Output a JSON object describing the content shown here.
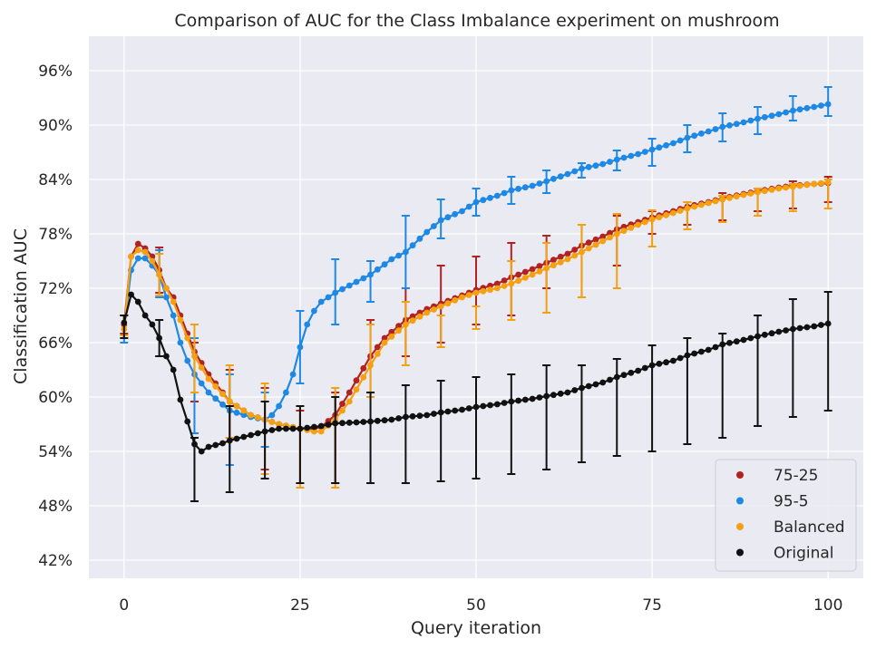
{
  "chart_data": {
    "type": "line",
    "title": "Comparison of AUC for the Class Imbalance experiment on mushroom",
    "xlabel": "Query iteration",
    "ylabel": "Classification AUC",
    "xlim": [
      -5,
      105
    ],
    "ylim": [
      0.4,
      0.998
    ],
    "xticks": [
      0,
      25,
      50,
      75,
      100
    ],
    "xtick_labels": [
      "0",
      "25",
      "50",
      "75",
      "100"
    ],
    "yticks": [
      0.42,
      0.48,
      0.54,
      0.6,
      0.66,
      0.72,
      0.78,
      0.84,
      0.9,
      0.96
    ],
    "ytick_labels": [
      "42%",
      "48%",
      "54%",
      "60%",
      "66%",
      "72%",
      "78%",
      "84%",
      "90%",
      "96%"
    ],
    "grid": true,
    "background": "#eaeaf2",
    "legend_position": "bottom-right",
    "errorbar_every": 5,
    "series": [
      {
        "name": "75-25",
        "color": "#b22222",
        "anchors": [
          [
            0,
            0.68
          ],
          [
            1,
            0.755
          ],
          [
            2,
            0.769
          ],
          [
            3,
            0.764
          ],
          [
            4,
            0.755
          ],
          [
            5,
            0.74
          ],
          [
            6,
            0.72
          ],
          [
            7,
            0.71
          ],
          [
            8,
            0.69
          ],
          [
            9,
            0.67
          ],
          [
            10,
            0.65
          ],
          [
            12,
            0.625
          ],
          [
            15,
            0.595
          ],
          [
            18,
            0.58
          ],
          [
            20,
            0.575
          ],
          [
            22,
            0.57
          ],
          [
            25,
            0.565
          ],
          [
            27,
            0.565
          ],
          [
            28,
            0.567
          ],
          [
            30,
            0.58
          ],
          [
            32,
            0.605
          ],
          [
            35,
            0.645
          ],
          [
            37,
            0.665
          ],
          [
            40,
            0.685
          ],
          [
            43,
            0.697
          ],
          [
            45,
            0.703
          ],
          [
            48,
            0.712
          ],
          [
            50,
            0.718
          ],
          [
            53,
            0.725
          ],
          [
            55,
            0.732
          ],
          [
            58,
            0.741
          ],
          [
            60,
            0.748
          ],
          [
            63,
            0.758
          ],
          [
            65,
            0.767
          ],
          [
            68,
            0.777
          ],
          [
            70,
            0.785
          ],
          [
            73,
            0.793
          ],
          [
            75,
            0.798
          ],
          [
            78,
            0.805
          ],
          [
            80,
            0.81
          ],
          [
            83,
            0.815
          ],
          [
            85,
            0.819
          ],
          [
            88,
            0.824
          ],
          [
            90,
            0.827
          ],
          [
            93,
            0.831
          ],
          [
            95,
            0.833
          ],
          [
            98,
            0.835
          ],
          [
            100,
            0.836
          ]
        ],
        "errorbars": [
          [
            0,
            0.67,
            0.69
          ],
          [
            5,
            0.715,
            0.765
          ],
          [
            10,
            0.595,
            0.66
          ],
          [
            15,
            0.555,
            0.63
          ],
          [
            20,
            0.52,
            0.61
          ],
          [
            25,
            0.505,
            0.585
          ],
          [
            30,
            0.505,
            0.605
          ],
          [
            35,
            0.605,
            0.685
          ],
          [
            40,
            0.645,
            0.72
          ],
          [
            45,
            0.66,
            0.745
          ],
          [
            50,
            0.68,
            0.755
          ],
          [
            55,
            0.69,
            0.77
          ],
          [
            60,
            0.72,
            0.778
          ],
          [
            65,
            0.71,
            0.79
          ],
          [
            70,
            0.745,
            0.8
          ],
          [
            75,
            0.78,
            0.805
          ],
          [
            80,
            0.79,
            0.815
          ],
          [
            85,
            0.795,
            0.825
          ],
          [
            90,
            0.805,
            0.83
          ],
          [
            95,
            0.808,
            0.838
          ],
          [
            100,
            0.815,
            0.843
          ]
        ]
      },
      {
        "name": "95-5",
        "color": "#1e88e5",
        "anchors": [
          [
            0,
            0.675
          ],
          [
            1,
            0.74
          ],
          [
            2,
            0.753
          ],
          [
            3,
            0.753
          ],
          [
            4,
            0.745
          ],
          [
            5,
            0.735
          ],
          [
            6,
            0.71
          ],
          [
            7,
            0.69
          ],
          [
            8,
            0.66
          ],
          [
            9,
            0.64
          ],
          [
            10,
            0.625
          ],
          [
            12,
            0.605
          ],
          [
            15,
            0.585
          ],
          [
            18,
            0.578
          ],
          [
            20,
            0.575
          ],
          [
            21,
            0.58
          ],
          [
            22,
            0.59
          ],
          [
            23,
            0.605
          ],
          [
            24,
            0.625
          ],
          [
            25,
            0.655
          ],
          [
            26,
            0.68
          ],
          [
            27,
            0.695
          ],
          [
            28,
            0.705
          ],
          [
            30,
            0.715
          ],
          [
            32,
            0.723
          ],
          [
            35,
            0.735
          ],
          [
            38,
            0.752
          ],
          [
            40,
            0.76
          ],
          [
            43,
            0.782
          ],
          [
            45,
            0.795
          ],
          [
            48,
            0.805
          ],
          [
            50,
            0.815
          ],
          [
            53,
            0.822
          ],
          [
            55,
            0.828
          ],
          [
            58,
            0.833
          ],
          [
            60,
            0.838
          ],
          [
            63,
            0.846
          ],
          [
            65,
            0.852
          ],
          [
            68,
            0.857
          ],
          [
            70,
            0.862
          ],
          [
            73,
            0.868
          ],
          [
            75,
            0.873
          ],
          [
            78,
            0.88
          ],
          [
            80,
            0.886
          ],
          [
            83,
            0.893
          ],
          [
            85,
            0.898
          ],
          [
            88,
            0.903
          ],
          [
            90,
            0.907
          ],
          [
            93,
            0.912
          ],
          [
            95,
            0.916
          ],
          [
            98,
            0.92
          ],
          [
            100,
            0.923
          ]
        ],
        "errorbars": [
          [
            0,
            0.66,
            0.69
          ],
          [
            5,
            0.71,
            0.762
          ],
          [
            10,
            0.56,
            0.665
          ],
          [
            15,
            0.525,
            0.625
          ],
          [
            20,
            0.545,
            0.605
          ],
          [
            25,
            0.615,
            0.695
          ],
          [
            30,
            0.68,
            0.752
          ],
          [
            35,
            0.705,
            0.75
          ],
          [
            40,
            0.72,
            0.8
          ],
          [
            45,
            0.775,
            0.818
          ],
          [
            50,
            0.8,
            0.83
          ],
          [
            55,
            0.813,
            0.843
          ],
          [
            60,
            0.825,
            0.85
          ],
          [
            65,
            0.842,
            0.858
          ],
          [
            70,
            0.85,
            0.872
          ],
          [
            75,
            0.855,
            0.885
          ],
          [
            80,
            0.87,
            0.9
          ],
          [
            85,
            0.882,
            0.913
          ],
          [
            90,
            0.89,
            0.92
          ],
          [
            95,
            0.905,
            0.932
          ],
          [
            100,
            0.91,
            0.942
          ]
        ]
      },
      {
        "name": "Balanced",
        "color": "#f5a010",
        "anchors": [
          [
            0,
            0.675
          ],
          [
            1,
            0.755
          ],
          [
            2,
            0.762
          ],
          [
            3,
            0.76
          ],
          [
            4,
            0.75
          ],
          [
            5,
            0.735
          ],
          [
            6,
            0.72
          ],
          [
            7,
            0.705
          ],
          [
            8,
            0.685
          ],
          [
            9,
            0.665
          ],
          [
            10,
            0.645
          ],
          [
            12,
            0.62
          ],
          [
            15,
            0.595
          ],
          [
            18,
            0.58
          ],
          [
            20,
            0.575
          ],
          [
            22,
            0.57
          ],
          [
            25,
            0.565
          ],
          [
            27,
            0.562
          ],
          [
            28,
            0.562
          ],
          [
            30,
            0.575
          ],
          [
            32,
            0.595
          ],
          [
            35,
            0.635
          ],
          [
            37,
            0.66
          ],
          [
            40,
            0.68
          ],
          [
            43,
            0.693
          ],
          [
            45,
            0.7
          ],
          [
            48,
            0.71
          ],
          [
            50,
            0.715
          ],
          [
            53,
            0.72
          ],
          [
            55,
            0.725
          ],
          [
            58,
            0.735
          ],
          [
            60,
            0.742
          ],
          [
            63,
            0.752
          ],
          [
            65,
            0.76
          ],
          [
            68,
            0.772
          ],
          [
            70,
            0.78
          ],
          [
            73,
            0.79
          ],
          [
            75,
            0.796
          ],
          [
            78,
            0.803
          ],
          [
            80,
            0.808
          ],
          [
            83,
            0.814
          ],
          [
            85,
            0.818
          ],
          [
            88,
            0.823
          ],
          [
            90,
            0.826
          ],
          [
            93,
            0.83
          ],
          [
            95,
            0.832
          ],
          [
            98,
            0.835
          ],
          [
            100,
            0.837
          ]
        ],
        "errorbars": [
          [
            0,
            0.668,
            0.69
          ],
          [
            5,
            0.712,
            0.758
          ],
          [
            10,
            0.605,
            0.68
          ],
          [
            15,
            0.555,
            0.635
          ],
          [
            20,
            0.515,
            0.615
          ],
          [
            25,
            0.5,
            0.59
          ],
          [
            30,
            0.5,
            0.61
          ],
          [
            35,
            0.6,
            0.68
          ],
          [
            40,
            0.635,
            0.705
          ],
          [
            45,
            0.655,
            0.69
          ],
          [
            50,
            0.675,
            0.7
          ],
          [
            55,
            0.685,
            0.75
          ],
          [
            60,
            0.693,
            0.77
          ],
          [
            65,
            0.71,
            0.79
          ],
          [
            70,
            0.72,
            0.802
          ],
          [
            75,
            0.766,
            0.806
          ],
          [
            80,
            0.785,
            0.815
          ],
          [
            85,
            0.793,
            0.822
          ],
          [
            90,
            0.8,
            0.83
          ],
          [
            95,
            0.805,
            0.835
          ],
          [
            100,
            0.808,
            0.84
          ]
        ]
      },
      {
        "name": "Original",
        "color": "#111111",
        "anchors": [
          [
            0,
            0.682
          ],
          [
            1,
            0.713
          ],
          [
            2,
            0.705
          ],
          [
            3,
            0.69
          ],
          [
            4,
            0.68
          ],
          [
            5,
            0.665
          ],
          [
            6,
            0.645
          ],
          [
            7,
            0.63
          ],
          [
            8,
            0.597
          ],
          [
            9,
            0.573
          ],
          [
            10,
            0.548
          ],
          [
            11,
            0.54
          ],
          [
            12,
            0.545
          ],
          [
            14,
            0.549
          ],
          [
            15,
            0.552
          ],
          [
            18,
            0.558
          ],
          [
            20,
            0.562
          ],
          [
            22,
            0.565
          ],
          [
            25,
            0.565
          ],
          [
            28,
            0.568
          ],
          [
            30,
            0.571
          ],
          [
            33,
            0.572
          ],
          [
            35,
            0.573
          ],
          [
            38,
            0.575
          ],
          [
            40,
            0.578
          ],
          [
            43,
            0.58
          ],
          [
            45,
            0.583
          ],
          [
            48,
            0.586
          ],
          [
            50,
            0.589
          ],
          [
            53,
            0.592
          ],
          [
            55,
            0.595
          ],
          [
            58,
            0.598
          ],
          [
            60,
            0.601
          ],
          [
            63,
            0.605
          ],
          [
            65,
            0.61
          ],
          [
            68,
            0.616
          ],
          [
            70,
            0.622
          ],
          [
            73,
            0.629
          ],
          [
            75,
            0.635
          ],
          [
            78,
            0.64
          ],
          [
            80,
            0.646
          ],
          [
            83,
            0.652
          ],
          [
            85,
            0.658
          ],
          [
            88,
            0.663
          ],
          [
            90,
            0.667
          ],
          [
            93,
            0.672
          ],
          [
            95,
            0.675
          ],
          [
            98,
            0.678
          ],
          [
            100,
            0.681
          ]
        ],
        "errorbars": [
          [
            0,
            0.665,
            0.69
          ],
          [
            5,
            0.645,
            0.685
          ],
          [
            10,
            0.485,
            0.555
          ],
          [
            15,
            0.495,
            0.59
          ],
          [
            20,
            0.51,
            0.595
          ],
          [
            25,
            0.505,
            0.59
          ],
          [
            30,
            0.505,
            0.6
          ],
          [
            35,
            0.505,
            0.605
          ],
          [
            40,
            0.505,
            0.613
          ],
          [
            45,
            0.507,
            0.618
          ],
          [
            50,
            0.51,
            0.622
          ],
          [
            55,
            0.515,
            0.625
          ],
          [
            60,
            0.52,
            0.635
          ],
          [
            65,
            0.528,
            0.635
          ],
          [
            70,
            0.535,
            0.642
          ],
          [
            75,
            0.54,
            0.657
          ],
          [
            80,
            0.548,
            0.665
          ],
          [
            85,
            0.555,
            0.67
          ],
          [
            90,
            0.568,
            0.69
          ],
          [
            95,
            0.578,
            0.708
          ],
          [
            100,
            0.585,
            0.716
          ]
        ]
      }
    ]
  }
}
